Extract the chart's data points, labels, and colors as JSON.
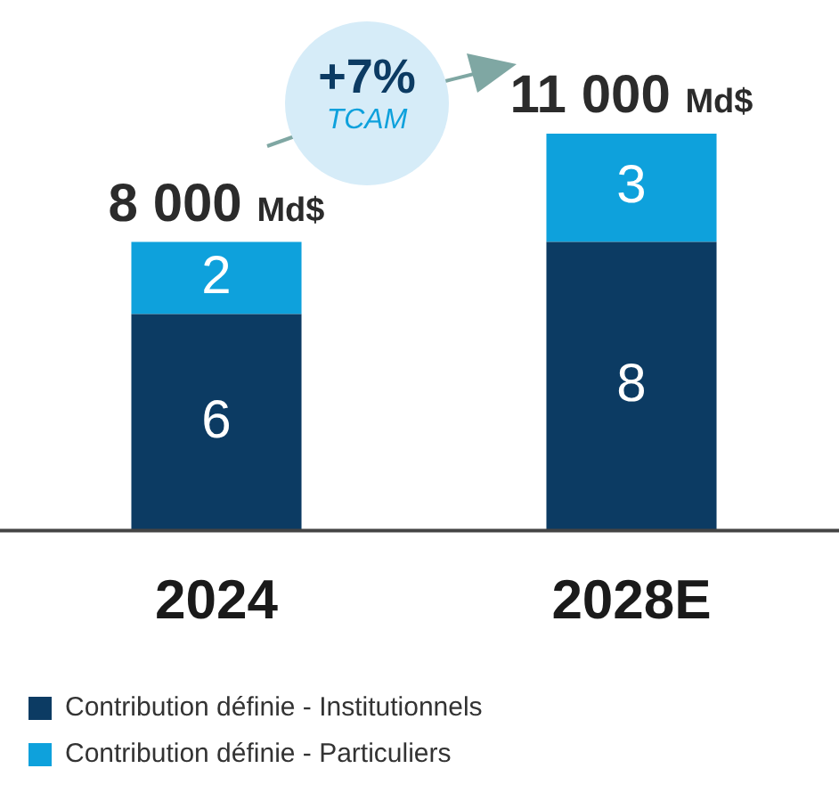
{
  "chart_data": {
    "type": "bar",
    "stacked": true,
    "categories": [
      "2024",
      "2028E"
    ],
    "series": [
      {
        "name": "Contribution définie - Institutionnels",
        "color": "#0c3b63",
        "values": [
          6,
          8
        ]
      },
      {
        "name": "Contribution définie - Particuliers",
        "color": "#0ea1dc",
        "values": [
          2,
          3
        ]
      }
    ],
    "data_labels": true,
    "totals": [
      "8 000 Md$",
      "11 000 Md$"
    ],
    "annotations": [
      "+7%",
      "TCAM"
    ],
    "legend": "bottom left",
    "grid": false
  }
}
